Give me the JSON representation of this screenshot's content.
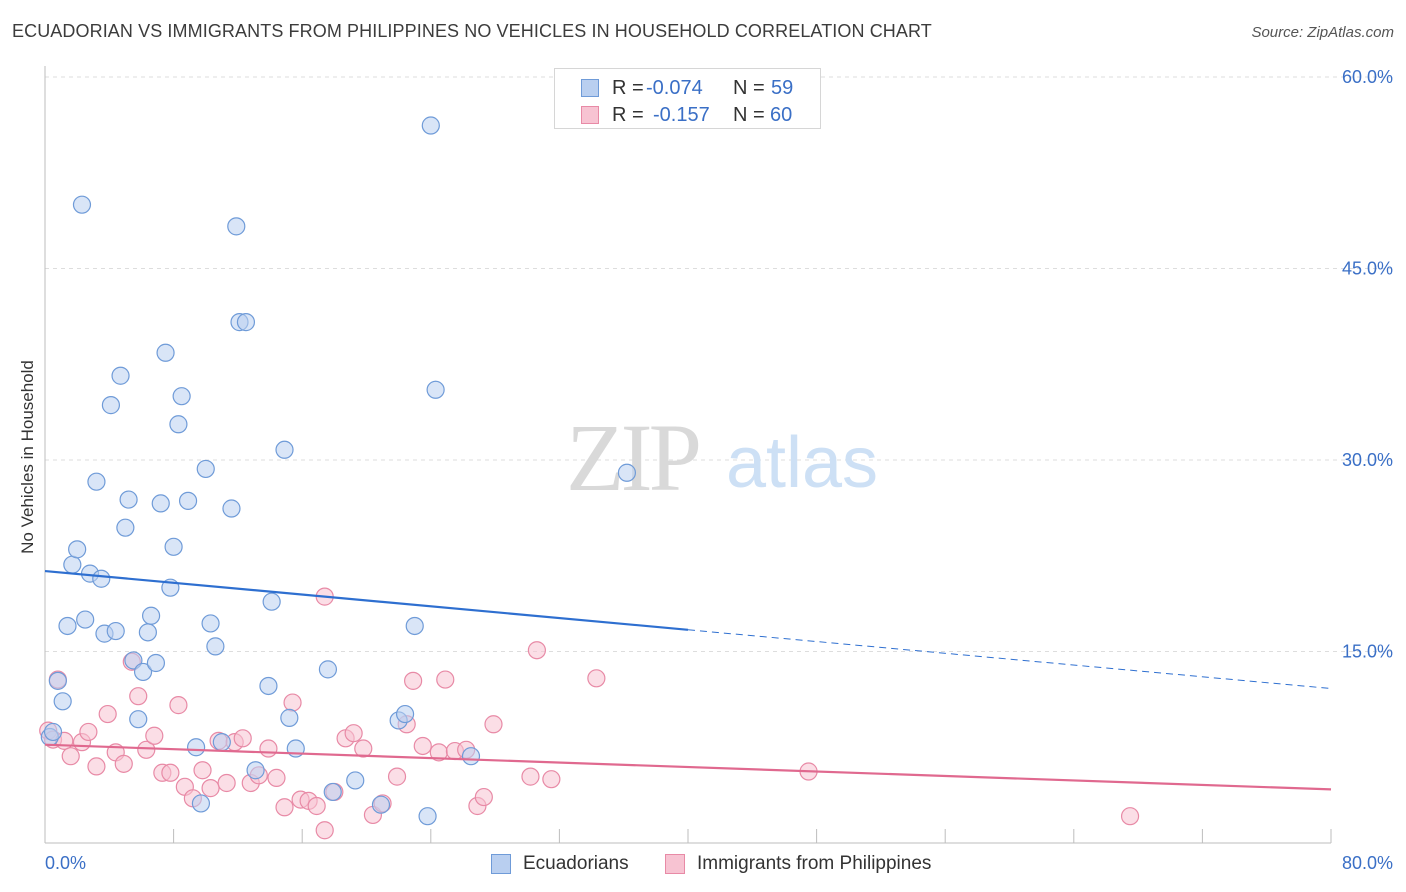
{
  "title": "ECUADORIAN VS IMMIGRANTS FROM PHILIPPINES NO VEHICLES IN HOUSEHOLD CORRELATION CHART",
  "source": "Source: ZipAtlas.com",
  "watermark": {
    "zip": "ZIP",
    "atlas": "atlas"
  },
  "legend": {
    "rows": [
      {
        "r_label": "R =",
        "r_value": "-0.074",
        "n_label": "N =",
        "n_value": "59"
      },
      {
        "r_label": "R =",
        "r_value": "-0.157",
        "n_label": "N =",
        "n_value": "60"
      }
    ]
  },
  "colors": {
    "blue_fill": "#b9cff0",
    "blue_stroke": "#6f9bd8",
    "blue_line": "#2e6fd0",
    "pink_fill": "#f7c3d2",
    "pink_stroke": "#e88aa6",
    "pink_line": "#e0698f",
    "tick_text": "#3a6fc6",
    "grid": "#dddddd"
  },
  "chart_data": {
    "type": "scatter",
    "title": "ECUADORIAN VS IMMIGRANTS FROM PHILIPPINES NO VEHICLES IN HOUSEHOLD CORRELATION CHART",
    "xlabel": "",
    "ylabel": "No Vehicles in Household",
    "xlim": [
      0,
      80
    ],
    "ylim": [
      0,
      60
    ],
    "x_tick_labels": [
      "0.0%",
      "80.0%"
    ],
    "y_ticks": [
      15,
      30,
      45,
      60
    ],
    "y_tick_labels": [
      "15.0%",
      "30.0%",
      "45.0%",
      "60.0%"
    ],
    "grid": true,
    "legend_position": "top-center and bottom",
    "series": [
      {
        "name": "Ecuadorians",
        "r": -0.074,
        "n": 59,
        "trend": {
          "x": [
            0,
            40
          ],
          "y": [
            21.3,
            16.7
          ],
          "dashed_to_x": 80,
          "dashed_to_y": 12.1
        },
        "points": [
          [
            0.3,
            8.3
          ],
          [
            0.5,
            8.7
          ],
          [
            0.8,
            12.7
          ],
          [
            1.1,
            11.1
          ],
          [
            1.4,
            17.0
          ],
          [
            1.7,
            21.8
          ],
          [
            2.0,
            23.0
          ],
          [
            2.3,
            50.0
          ],
          [
            2.5,
            17.5
          ],
          [
            2.8,
            21.1
          ],
          [
            3.2,
            28.3
          ],
          [
            3.5,
            20.7
          ],
          [
            3.7,
            16.4
          ],
          [
            4.1,
            34.3
          ],
          [
            4.4,
            16.6
          ],
          [
            4.7,
            36.6
          ],
          [
            5.0,
            24.7
          ],
          [
            5.2,
            26.9
          ],
          [
            5.5,
            14.3
          ],
          [
            5.8,
            9.7
          ],
          [
            6.1,
            13.4
          ],
          [
            6.4,
            16.5
          ],
          [
            6.6,
            17.8
          ],
          [
            6.9,
            14.1
          ],
          [
            7.2,
            26.6
          ],
          [
            7.5,
            38.4
          ],
          [
            7.8,
            20.0
          ],
          [
            8.0,
            23.2
          ],
          [
            8.3,
            32.8
          ],
          [
            8.5,
            35.0
          ],
          [
            8.9,
            26.8
          ],
          [
            9.4,
            7.5
          ],
          [
            9.7,
            3.1
          ],
          [
            10.0,
            29.3
          ],
          [
            10.3,
            17.2
          ],
          [
            10.6,
            15.4
          ],
          [
            11.0,
            7.9
          ],
          [
            11.6,
            26.2
          ],
          [
            11.9,
            48.3
          ],
          [
            12.1,
            40.8
          ],
          [
            12.5,
            40.8
          ],
          [
            13.1,
            5.7
          ],
          [
            13.9,
            12.3
          ],
          [
            14.1,
            18.9
          ],
          [
            14.9,
            30.8
          ],
          [
            15.2,
            9.8
          ],
          [
            15.6,
            7.4
          ],
          [
            17.6,
            13.6
          ],
          [
            17.9,
            4.0
          ],
          [
            19.3,
            4.9
          ],
          [
            20.9,
            3.0
          ],
          [
            22.0,
            9.6
          ],
          [
            22.4,
            10.1
          ],
          [
            23.0,
            17.0
          ],
          [
            23.8,
            2.1
          ],
          [
            24.0,
            56.2
          ],
          [
            24.3,
            35.5
          ],
          [
            26.5,
            6.8
          ],
          [
            36.2,
            29.0
          ]
        ]
      },
      {
        "name": "Immigrants from Philippines",
        "r": -0.157,
        "n": 60,
        "trend": {
          "x": [
            0,
            80
          ],
          "y": [
            7.7,
            4.2
          ]
        },
        "points": [
          [
            0.2,
            8.8
          ],
          [
            0.5,
            8.1
          ],
          [
            0.8,
            12.8
          ],
          [
            1.2,
            8.0
          ],
          [
            1.6,
            6.8
          ],
          [
            2.3,
            7.9
          ],
          [
            2.7,
            8.7
          ],
          [
            3.2,
            6.0
          ],
          [
            3.9,
            10.1
          ],
          [
            4.4,
            7.1
          ],
          [
            4.9,
            6.2
          ],
          [
            5.4,
            14.2
          ],
          [
            5.8,
            11.5
          ],
          [
            6.3,
            7.3
          ],
          [
            6.8,
            8.4
          ],
          [
            7.3,
            5.5
          ],
          [
            7.8,
            5.5
          ],
          [
            8.3,
            10.8
          ],
          [
            8.7,
            4.4
          ],
          [
            9.2,
            3.5
          ],
          [
            9.8,
            5.7
          ],
          [
            10.3,
            4.3
          ],
          [
            10.8,
            8.0
          ],
          [
            11.3,
            4.7
          ],
          [
            11.8,
            7.9
          ],
          [
            12.3,
            8.2
          ],
          [
            12.8,
            4.7
          ],
          [
            13.3,
            5.3
          ],
          [
            13.9,
            7.4
          ],
          [
            14.4,
            5.1
          ],
          [
            14.9,
            2.8
          ],
          [
            15.4,
            11.0
          ],
          [
            15.9,
            3.4
          ],
          [
            16.4,
            3.3
          ],
          [
            16.9,
            2.9
          ],
          [
            17.4,
            19.3
          ],
          [
            17.4,
            1.0
          ],
          [
            18.0,
            4.0
          ],
          [
            18.7,
            8.2
          ],
          [
            19.2,
            8.6
          ],
          [
            19.8,
            7.4
          ],
          [
            20.4,
            2.2
          ],
          [
            21.0,
            3.1
          ],
          [
            21.9,
            5.2
          ],
          [
            22.5,
            9.3
          ],
          [
            22.9,
            12.7
          ],
          [
            23.5,
            7.6
          ],
          [
            24.5,
            7.1
          ],
          [
            24.9,
            12.8
          ],
          [
            25.5,
            7.2
          ],
          [
            26.2,
            7.3
          ],
          [
            26.9,
            2.9
          ],
          [
            27.3,
            3.6
          ],
          [
            27.9,
            9.3
          ],
          [
            30.2,
            5.2
          ],
          [
            30.6,
            15.1
          ],
          [
            31.5,
            5.0
          ],
          [
            34.3,
            12.9
          ],
          [
            47.5,
            5.6
          ],
          [
            67.5,
            2.1
          ]
        ]
      }
    ]
  },
  "bottom_legend": {
    "items": [
      "Ecuadorians",
      "Immigrants from Philippines"
    ]
  }
}
